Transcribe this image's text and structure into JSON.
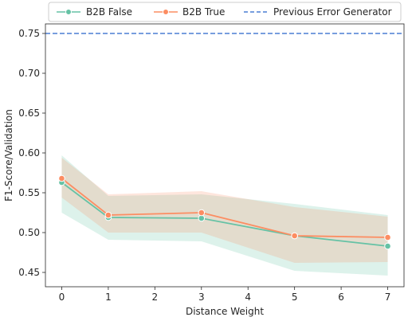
{
  "chart_data": {
    "type": "line",
    "xlabel": "Distance Weight",
    "ylabel": "F1-Score/Validation",
    "xlim": [
      -0.35,
      7.35
    ],
    "ylim": [
      0.432,
      0.762
    ],
    "x_ticks": [
      "0",
      "1",
      "2",
      "3",
      "4",
      "5",
      "6",
      "7"
    ],
    "y_ticks": [
      "0.45",
      "0.50",
      "0.55",
      "0.60",
      "0.65",
      "0.70",
      "0.75"
    ],
    "grid": false,
    "legend": "top",
    "series": [
      {
        "name": "B2B False",
        "color": "#66c2a5",
        "x": [
          0,
          1,
          3,
          5,
          7
        ],
        "values": [
          0.563,
          0.519,
          0.518,
          0.496,
          0.483
        ],
        "ci_lower": [
          0.525,
          0.491,
          0.489,
          0.452,
          0.446
        ],
        "ci_upper": [
          0.597,
          0.546,
          0.548,
          0.536,
          0.522
        ]
      },
      {
        "name": "B2B True",
        "color": "#fc8d62",
        "x": [
          0,
          1,
          3,
          5,
          7
        ],
        "values": [
          0.568,
          0.522,
          0.525,
          0.496,
          0.494
        ],
        "ci_lower": [
          0.544,
          0.5,
          0.5,
          0.462,
          0.463
        ],
        "ci_upper": [
          0.594,
          0.548,
          0.552,
          0.532,
          0.52
        ]
      }
    ],
    "reference_lines": [
      {
        "name": "Previous Error Generator",
        "y": 0.75,
        "color": "#4a7fd4",
        "style": "dashed"
      }
    ]
  }
}
